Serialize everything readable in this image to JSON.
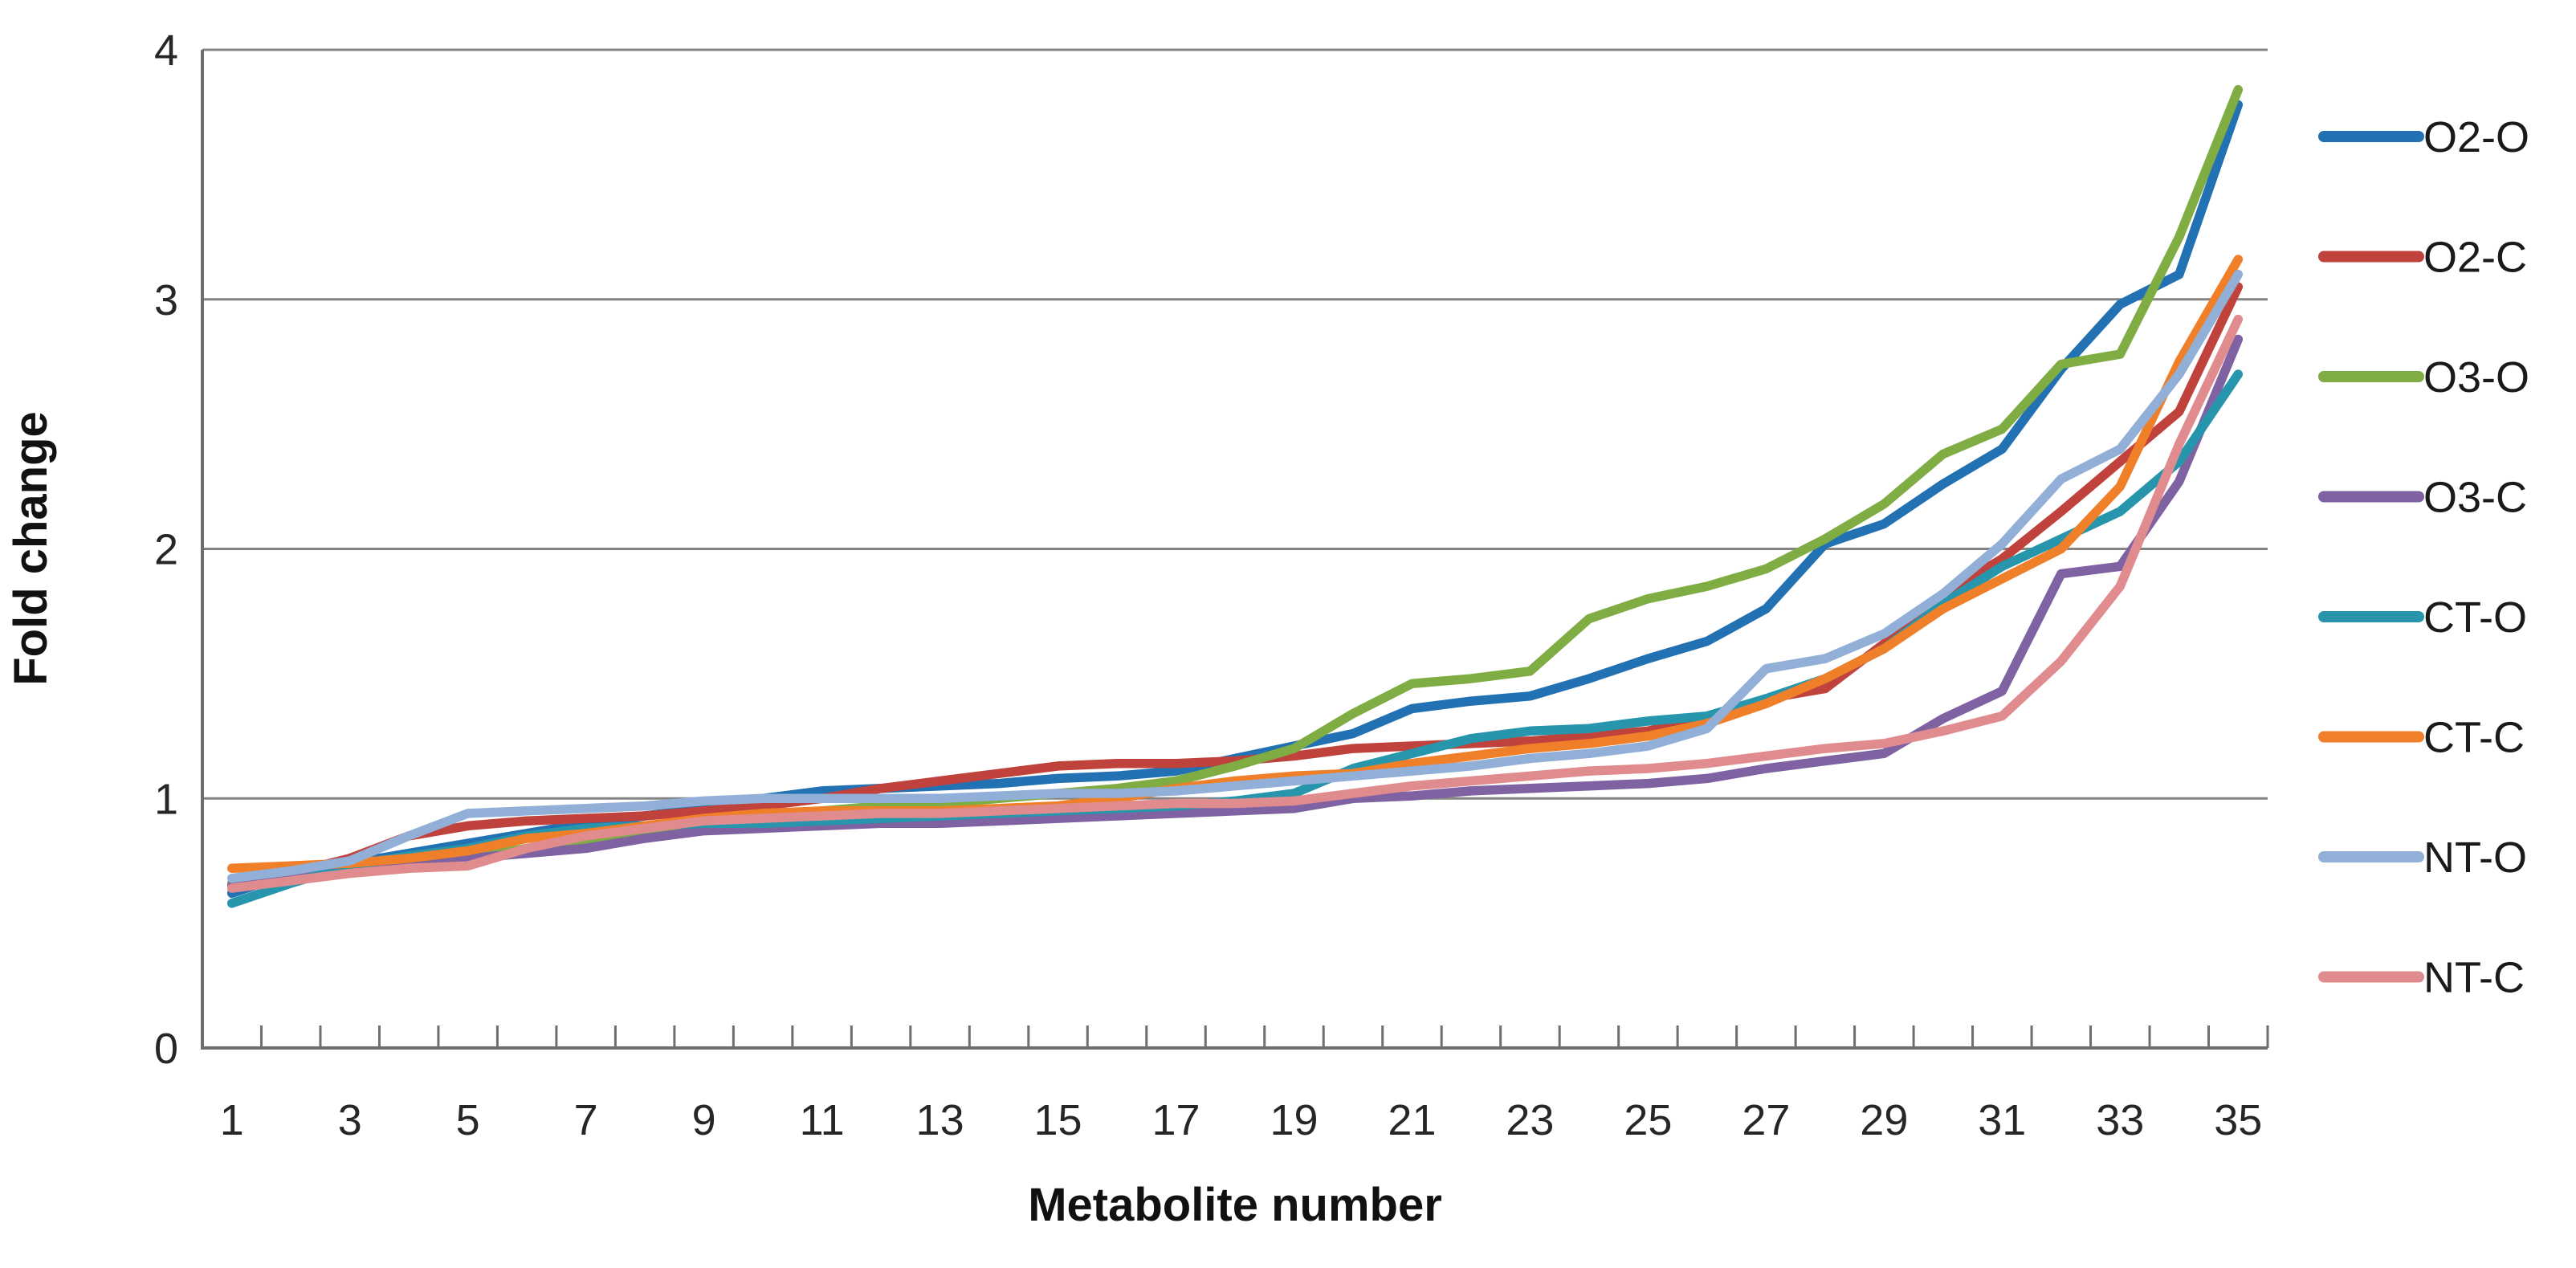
{
  "figure": {
    "kind": "line-chart-figure",
    "background": "#ffffff"
  },
  "colors": {
    "axis": "#6E6E6E",
    "gridline": "#848484",
    "tick_label": "#262626",
    "axis_title": "#111111",
    "legend_label": "#1a1a1a"
  },
  "chart_data": {
    "type": "line",
    "title": "",
    "xlabel": "Metabolite number",
    "ylabel": "Fold change",
    "x": [
      1,
      2,
      3,
      4,
      5,
      6,
      7,
      8,
      9,
      10,
      11,
      12,
      13,
      14,
      15,
      16,
      17,
      18,
      19,
      20,
      21,
      22,
      23,
      24,
      25,
      26,
      27,
      28,
      29,
      30,
      31,
      32,
      33,
      34,
      35
    ],
    "xtick_labels": [
      "1",
      "3",
      "5",
      "7",
      "9",
      "11",
      "13",
      "15",
      "17",
      "19",
      "21",
      "23",
      "25",
      "27",
      "29",
      "31",
      "33",
      "35"
    ],
    "ytick_labels": [
      "0",
      "1",
      "2",
      "3",
      "4"
    ],
    "yticks": [
      0,
      1,
      2,
      3,
      4
    ],
    "ylim": [
      0,
      4
    ],
    "grid": true,
    "legend_position": "right",
    "series": [
      {
        "name": "O2-O",
        "color": "#2271B3",
        "values": [
          0.62,
          0.7,
          0.74,
          0.78,
          0.82,
          0.86,
          0.9,
          0.93,
          0.96,
          1.0,
          1.03,
          1.04,
          1.05,
          1.06,
          1.08,
          1.09,
          1.11,
          1.16,
          1.21,
          1.26,
          1.36,
          1.39,
          1.41,
          1.48,
          1.56,
          1.63,
          1.76,
          2.02,
          2.1,
          2.26,
          2.4,
          2.72,
          2.98,
          3.1,
          3.78
        ]
      },
      {
        "name": "O2-C",
        "color": "#C0423C",
        "values": [
          0.66,
          0.7,
          0.76,
          0.85,
          0.89,
          0.91,
          0.92,
          0.93,
          0.95,
          0.97,
          1.0,
          1.04,
          1.07,
          1.1,
          1.13,
          1.14,
          1.14,
          1.15,
          1.17,
          1.2,
          1.21,
          1.22,
          1.23,
          1.25,
          1.27,
          1.32,
          1.4,
          1.44,
          1.62,
          1.82,
          1.96,
          2.15,
          2.35,
          2.55,
          3.05
        ]
      },
      {
        "name": "O3-O",
        "color": "#7FAC43",
        "values": [
          0.66,
          0.69,
          0.71,
          0.73,
          0.76,
          0.8,
          0.83,
          0.86,
          0.89,
          0.92,
          0.95,
          0.97,
          0.98,
          1.0,
          1.02,
          1.04,
          1.07,
          1.13,
          1.2,
          1.34,
          1.46,
          1.48,
          1.51,
          1.72,
          1.8,
          1.85,
          1.92,
          2.04,
          2.18,
          2.38,
          2.48,
          2.74,
          2.78,
          3.25,
          3.84
        ]
      },
      {
        "name": "O3-C",
        "color": "#7E62A1",
        "values": [
          0.65,
          0.68,
          0.71,
          0.74,
          0.76,
          0.78,
          0.8,
          0.84,
          0.87,
          0.88,
          0.89,
          0.9,
          0.9,
          0.91,
          0.92,
          0.93,
          0.94,
          0.95,
          0.96,
          1.0,
          1.01,
          1.03,
          1.04,
          1.05,
          1.06,
          1.08,
          1.12,
          1.15,
          1.18,
          1.32,
          1.43,
          1.9,
          1.93,
          2.27,
          2.84
        ]
      },
      {
        "name": "CT-O",
        "color": "#2796AC",
        "values": [
          0.58,
          0.66,
          0.73,
          0.77,
          0.8,
          0.85,
          0.88,
          0.89,
          0.9,
          0.9,
          0.91,
          0.92,
          0.93,
          0.94,
          0.95,
          0.96,
          0.97,
          0.99,
          1.02,
          1.12,
          1.18,
          1.24,
          1.27,
          1.28,
          1.31,
          1.33,
          1.4,
          1.48,
          1.6,
          1.78,
          1.93,
          2.04,
          2.15,
          2.35,
          2.7
        ]
      },
      {
        "name": "CT-C",
        "color": "#F07F29",
        "values": [
          0.72,
          0.73,
          0.74,
          0.76,
          0.79,
          0.84,
          0.86,
          0.89,
          0.92,
          0.94,
          0.95,
          0.95,
          0.95,
          0.96,
          0.97,
          1.0,
          1.04,
          1.07,
          1.09,
          1.1,
          1.14,
          1.17,
          1.2,
          1.22,
          1.25,
          1.3,
          1.38,
          1.48,
          1.6,
          1.76,
          1.88,
          2.0,
          2.25,
          2.75,
          3.16
        ]
      },
      {
        "name": "NT-O",
        "color": "#92AFD7",
        "values": [
          0.68,
          0.71,
          0.75,
          0.85,
          0.94,
          0.95,
          0.96,
          0.97,
          0.99,
          1.0,
          1.0,
          1.0,
          1.0,
          1.01,
          1.02,
          1.02,
          1.03,
          1.05,
          1.07,
          1.09,
          1.11,
          1.13,
          1.16,
          1.18,
          1.21,
          1.28,
          1.52,
          1.56,
          1.66,
          1.82,
          2.02,
          2.28,
          2.4,
          2.7,
          3.1
        ]
      },
      {
        "name": "NT-C",
        "color": "#E08C8E",
        "values": [
          0.64,
          0.67,
          0.7,
          0.72,
          0.73,
          0.8,
          0.85,
          0.88,
          0.91,
          0.92,
          0.93,
          0.94,
          0.94,
          0.95,
          0.96,
          0.97,
          0.98,
          0.98,
          0.99,
          1.02,
          1.05,
          1.07,
          1.09,
          1.11,
          1.12,
          1.14,
          1.17,
          1.2,
          1.22,
          1.27,
          1.33,
          1.55,
          1.85,
          2.42,
          2.92
        ]
      }
    ]
  }
}
